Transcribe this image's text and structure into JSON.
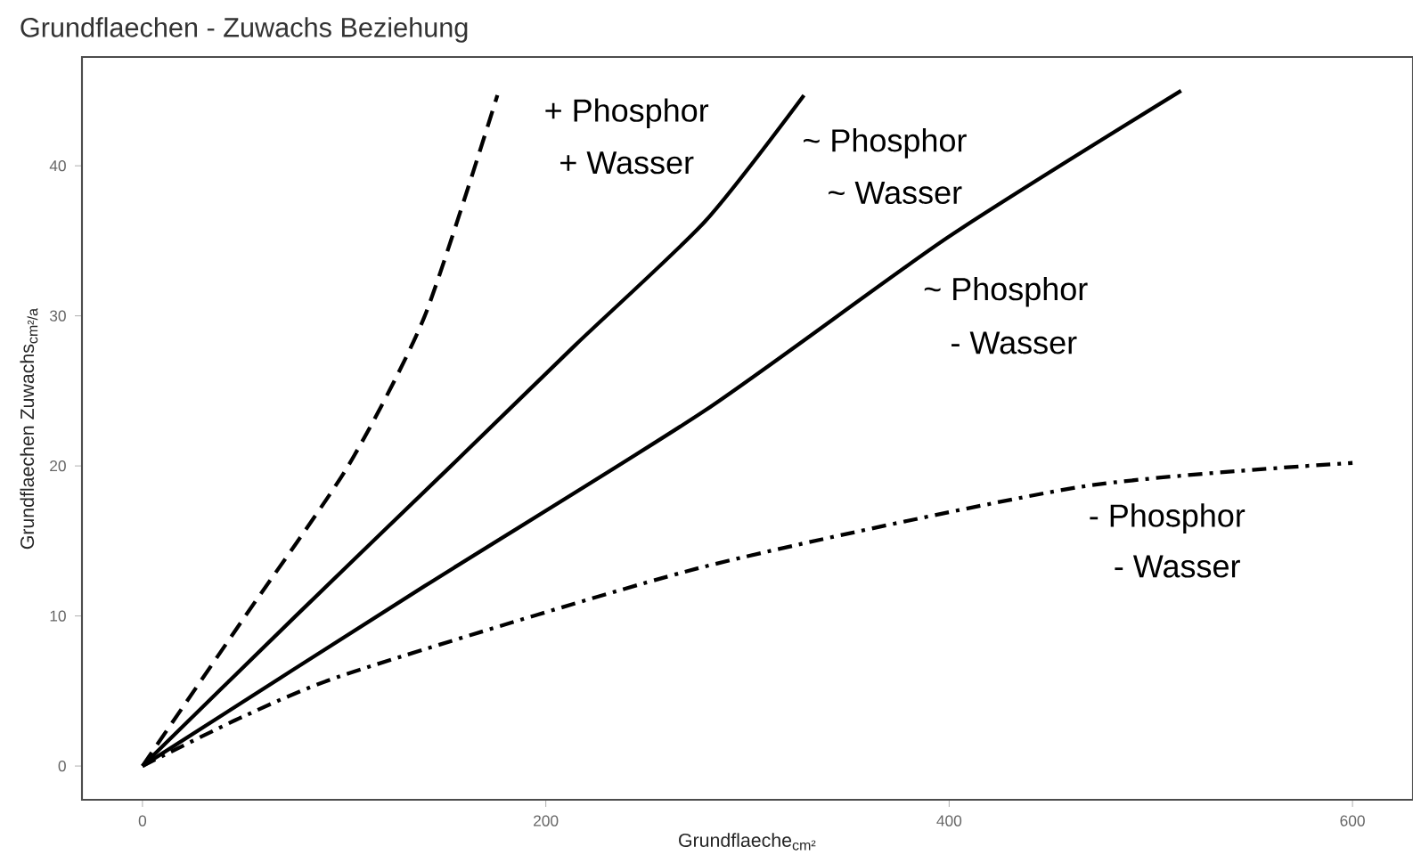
{
  "chart_data": {
    "type": "line",
    "title": "Grundflaechen - Zuwachs Beziehung",
    "xlabel": "Grundflaeche$_{cm²}$",
    "ylabel": "Grundflaechen Zuwachs$_{cm²/a}$",
    "xlim": [
      -30,
      630
    ],
    "ylim": [
      -2.25,
      47.25
    ],
    "xticks": [
      0,
      200,
      400,
      600
    ],
    "yticks": [
      0,
      10,
      20,
      30,
      40
    ],
    "marker": "none",
    "series": [
      {
        "color": "#000000",
        "line_style": "dashed",
        "x": [
          0,
          51,
          102,
          140,
          176
        ],
        "values": [
          0,
          10,
          20,
          30,
          44.7
        ]
      },
      {
        "color": "#000000",
        "line_style": "solid",
        "x": [
          0,
          76,
          153,
          215,
          279,
          328
        ],
        "values": [
          0,
          10,
          20,
          28.1,
          36.3,
          44.7
        ]
      },
      {
        "color": "#000000",
        "line_style": "solid",
        "x": [
          0,
          140,
          279,
          399,
          515
        ],
        "values": [
          0,
          12,
          23.7,
          35.2,
          45
        ]
      },
      {
        "color": "#000000",
        "line_style": "dashdot",
        "x": [
          0,
          50,
          105,
          279,
          465,
          600
        ],
        "values": [
          0,
          3.3,
          6.3,
          13.3,
          18.6,
          20.2
        ]
      }
    ],
    "annotations": [
      "+ Phosphor",
      "+ Wasser",
      "~ Phosphor",
      "~ Wasser",
      "~ Phosphor",
      "- Wasser",
      "- Phosphor",
      "- Wasser"
    ]
  }
}
